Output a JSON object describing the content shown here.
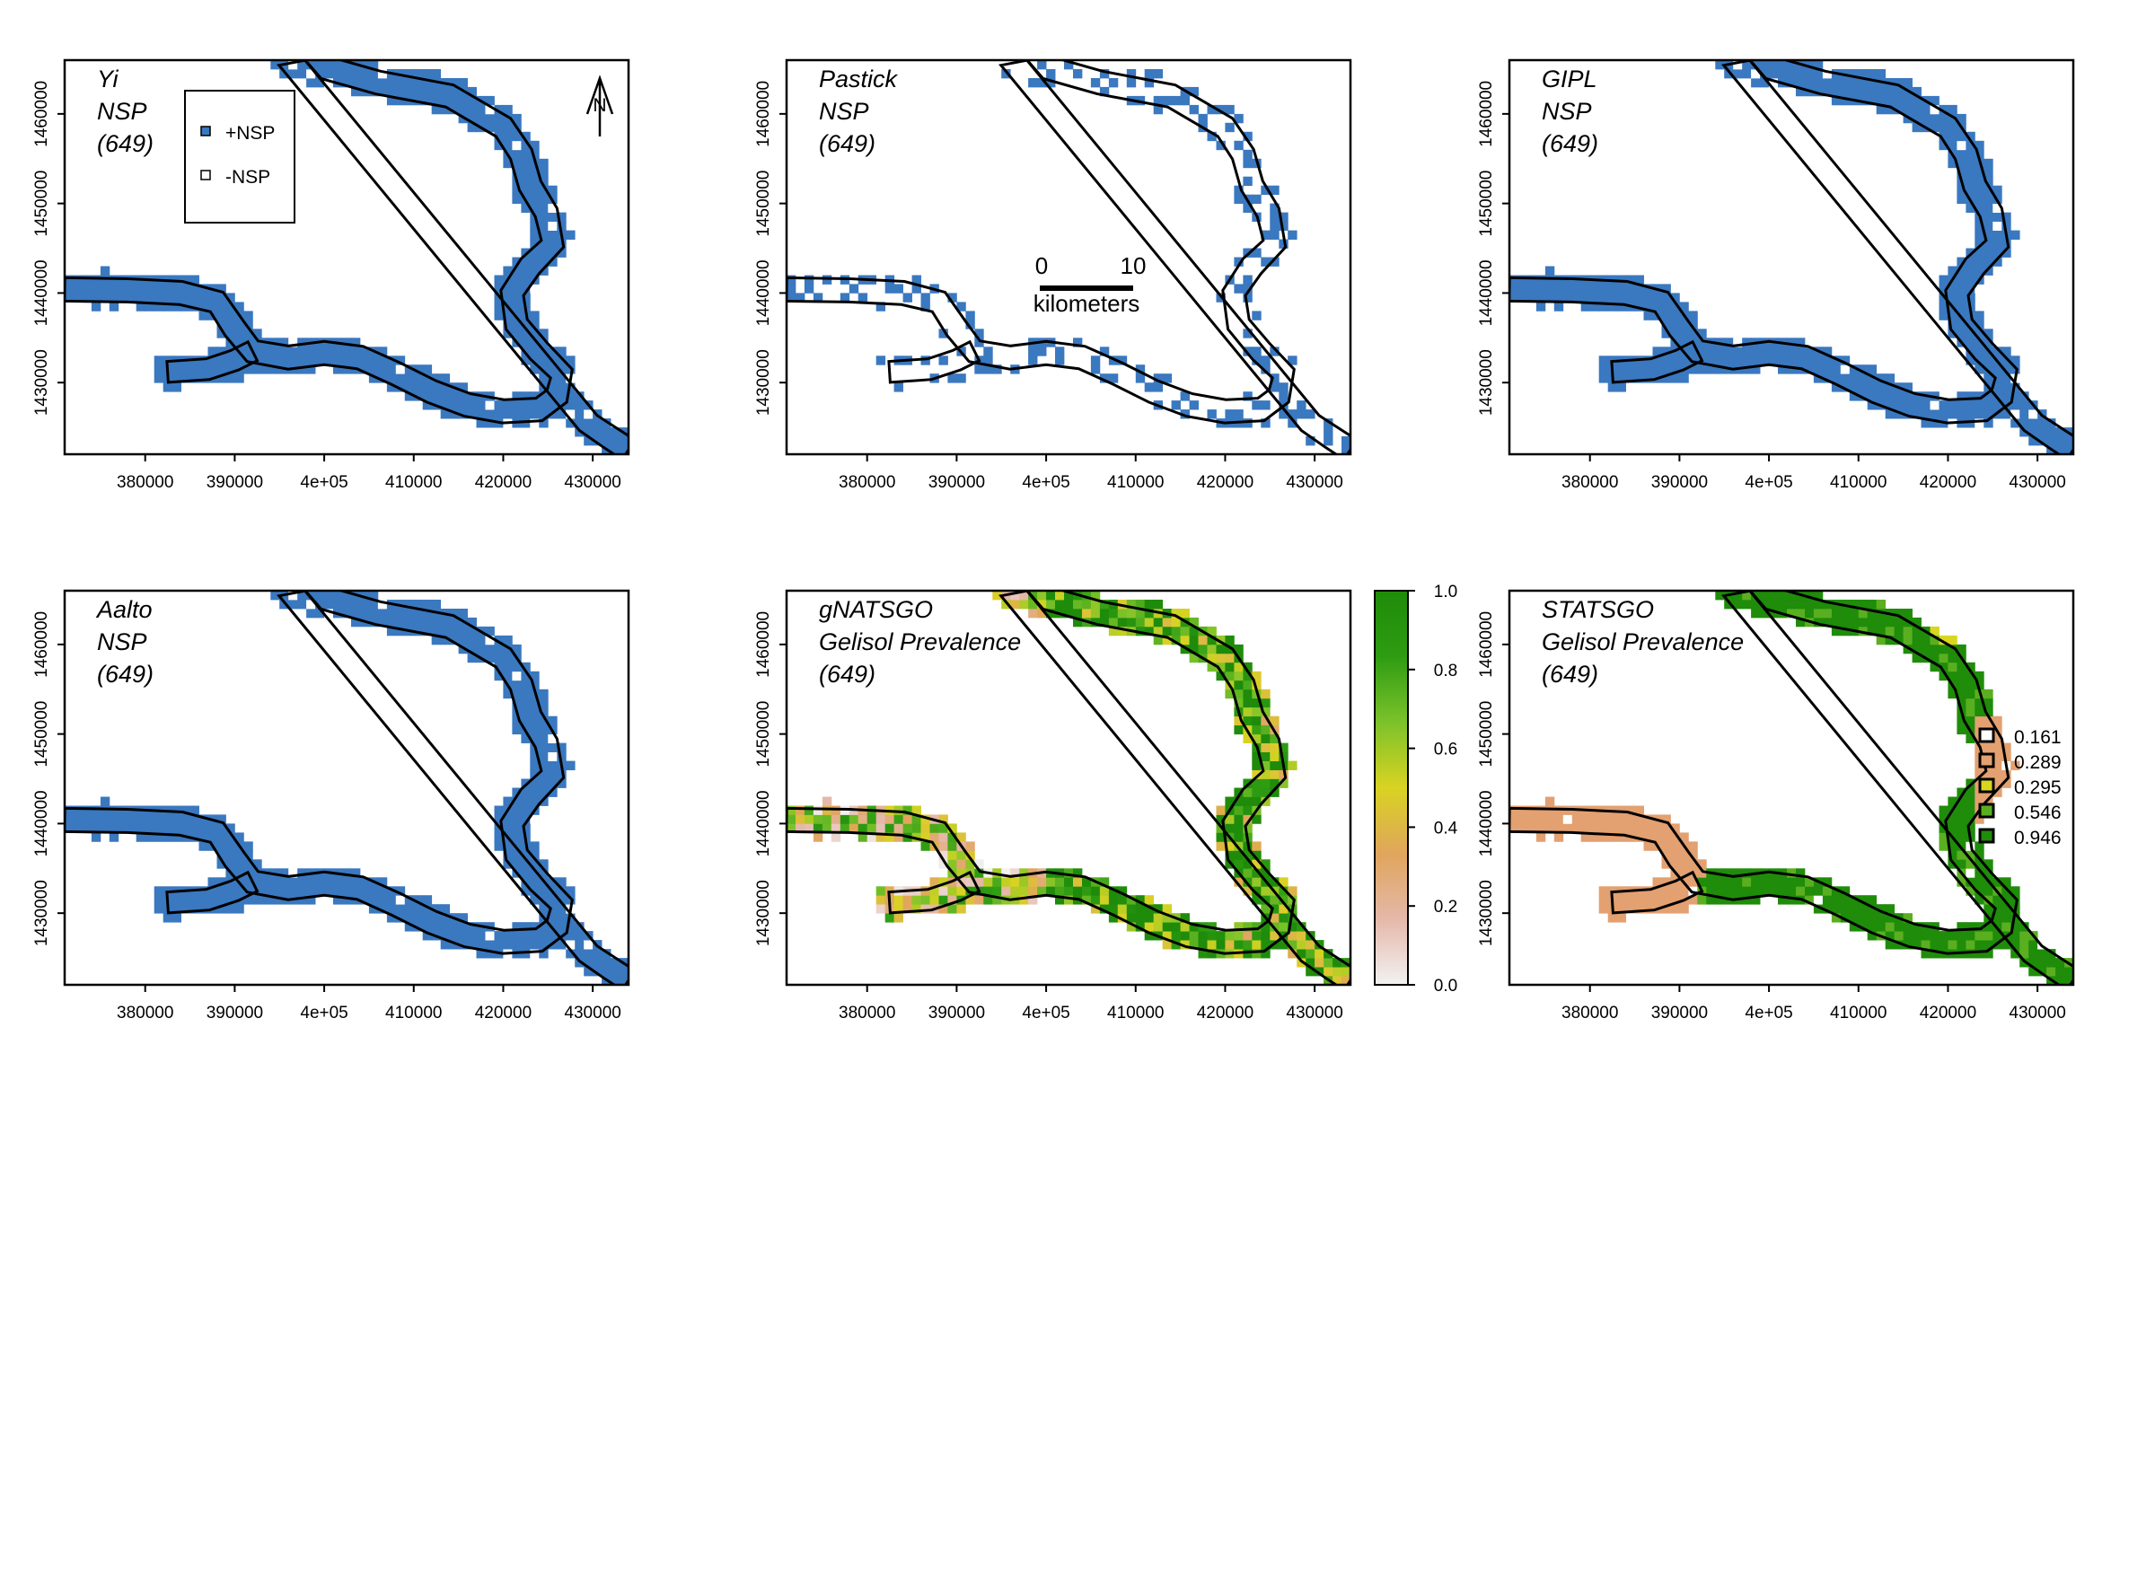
{
  "colors": {
    "nsp_positive": "#3a78c0",
    "nsp_negative": "#ffffff",
    "outline": "#000000",
    "gradient_stops": [
      "#f2f2f2",
      "#e5b8a9",
      "#e0a55c",
      "#d9d322",
      "#7cc22a",
      "#2e9c12",
      "#1f8b0a"
    ],
    "statsgo_classes": [
      "#ffffff",
      "#e3a070",
      "#d8d620",
      "#5aaf20",
      "#1f8c0a"
    ]
  },
  "axes": {
    "x_ticks": [
      "380000",
      "390000",
      "4e+05",
      "410000",
      "420000",
      "430000"
    ],
    "y_ticks": [
      "1430000",
      "1440000",
      "1450000",
      "1460000"
    ]
  },
  "panels": [
    {
      "id": "yi",
      "title": [
        "Yi",
        "NSP",
        "(649)"
      ],
      "fill": "nsp",
      "coverage": 1.0,
      "scatter": 0.0
    },
    {
      "id": "pastick",
      "title": [
        "Pastick",
        "NSP",
        "(649)"
      ],
      "fill": "nsp",
      "coverage": 0.35,
      "scatter": 0.0
    },
    {
      "id": "gipl",
      "title": [
        "GIPL",
        "NSP",
        "(649)"
      ],
      "fill": "nsp",
      "coverage": 1.0,
      "scatter": 0.0
    },
    {
      "id": "aalto",
      "title": [
        "Aalto",
        "NSP",
        "(649)"
      ],
      "fill": "nsp",
      "coverage": 1.0,
      "scatter": 0.0
    },
    {
      "id": "gnatsgo",
      "title": [
        "gNATSGO",
        "Gelisol Prevalence",
        "(649)"
      ],
      "fill": "gradient",
      "coverage": 1.0,
      "scatter": 0.0
    },
    {
      "id": "statsgo",
      "title": [
        "STATSGO",
        "Gelisol Prevalence",
        "(649)"
      ],
      "fill": "statsgo",
      "coverage": 1.0,
      "scatter": 0.0
    }
  ],
  "legend_nsp": {
    "items": [
      "+NSP",
      "-NSP"
    ]
  },
  "north_arrow": {
    "label": "N"
  },
  "scalebar": {
    "labels": [
      "0",
      "10"
    ],
    "unit": "kilometers"
  },
  "colorbar": {
    "ticks": [
      "0.0",
      "0.2",
      "0.4",
      "0.6",
      "0.8",
      "1.0"
    ],
    "range": [
      0,
      1
    ]
  },
  "legend_statsgo": {
    "items": [
      "0.161",
      "0.289",
      "0.295",
      "0.546",
      "0.946"
    ]
  }
}
